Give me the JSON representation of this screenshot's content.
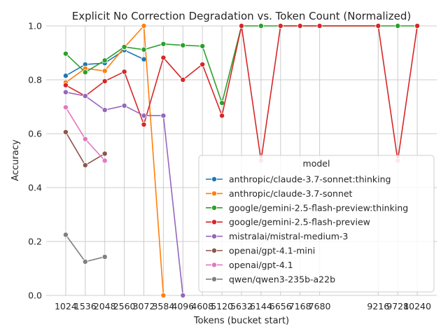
{
  "chart_data": {
    "type": "line",
    "title": "Explicit No Correction Degradation vs. Token Count (Normalized)",
    "xlabel": "Tokens (bucket start)",
    "ylabel": "Accuracy",
    "ylim": [
      0,
      1.0
    ],
    "xlim": [
      512,
      10752
    ],
    "x_ticks": [
      1024,
      1536,
      2048,
      2560,
      3072,
      3584,
      4096,
      4608,
      5120,
      5632,
      6144,
      6656,
      7168,
      7680,
      9216,
      9728,
      10240
    ],
    "y_ticks": [
      0.0,
      0.2,
      0.4,
      0.6,
      0.8,
      1.0
    ],
    "y_tick_labels": [
      "0.0",
      "0.2",
      "0.4",
      "0.6",
      "0.8",
      "1.0"
    ],
    "grid": true,
    "legend": {
      "title": "model",
      "placement": "lower-right"
    },
    "series": [
      {
        "name": "anthropic/claude-3.7-sonnet:thinking",
        "color": "#1f77b4",
        "points": [
          [
            1024,
            0.815
          ],
          [
            1536,
            0.857
          ],
          [
            2048,
            0.862
          ],
          [
            2560,
            0.91
          ],
          [
            3072,
            0.876
          ]
        ]
      },
      {
        "name": "anthropic/claude-3.7-sonnet",
        "color": "#ff7f0e",
        "points": [
          [
            1024,
            0.79
          ],
          [
            1536,
            0.842
          ],
          [
            2048,
            0.833
          ],
          [
            2560,
            0.92
          ],
          [
            3072,
            1.0
          ],
          [
            3584,
            0.0
          ]
        ]
      },
      {
        "name": "google/gemini-2.5-flash-preview:thinking",
        "color": "#2ca02c",
        "points": [
          [
            1024,
            0.897
          ],
          [
            1536,
            0.828
          ],
          [
            2048,
            0.872
          ],
          [
            2560,
            0.922
          ],
          [
            3072,
            0.912
          ],
          [
            3584,
            0.933
          ],
          [
            4096,
            0.928
          ],
          [
            4608,
            0.925
          ],
          [
            5120,
            0.714
          ],
          [
            5632,
            1.0
          ],
          [
            6144,
            1.0
          ],
          [
            6656,
            1.0
          ],
          [
            7168,
            1.0
          ],
          [
            7680,
            1.0
          ],
          [
            9216,
            1.0
          ],
          [
            9728,
            1.0
          ],
          [
            10240,
            1.0
          ]
        ]
      },
      {
        "name": "google/gemini-2.5-flash-preview",
        "color": "#d62728",
        "points": [
          [
            1024,
            0.78
          ],
          [
            1536,
            0.74
          ],
          [
            2048,
            0.795
          ],
          [
            2560,
            0.83
          ],
          [
            3072,
            0.634
          ],
          [
            3584,
            0.882
          ],
          [
            4096,
            0.8
          ],
          [
            4608,
            0.857
          ],
          [
            5120,
            0.667
          ],
          [
            5632,
            1.0
          ],
          [
            6144,
            0.5
          ],
          [
            6656,
            1.0
          ],
          [
            7168,
            1.0
          ],
          [
            7680,
            1.0
          ],
          [
            9216,
            1.0
          ],
          [
            9728,
            0.5
          ],
          [
            10240,
            1.0
          ]
        ]
      },
      {
        "name": "mistralai/mistral-medium-3",
        "color": "#9467bd",
        "points": [
          [
            1024,
            0.754
          ],
          [
            1536,
            0.74
          ],
          [
            2048,
            0.688
          ],
          [
            2560,
            0.704
          ],
          [
            3072,
            0.667
          ],
          [
            3584,
            0.667
          ],
          [
            4096,
            0.0
          ]
        ]
      },
      {
        "name": "openai/gpt-4.1-mini",
        "color": "#8c564b",
        "points": [
          [
            1024,
            0.606
          ],
          [
            1536,
            0.483
          ],
          [
            2048,
            0.526
          ]
        ]
      },
      {
        "name": "openai/gpt-4.1",
        "color": "#e377c2",
        "points": [
          [
            1024,
            0.698
          ],
          [
            1536,
            0.58
          ],
          [
            2048,
            0.5
          ],
          [
            6144,
            0.5
          ],
          [
            9728,
            0.5
          ]
        ],
        "segments": [
          [
            0,
            1,
            2
          ]
        ]
      },
      {
        "name": "qwen/qwen3-235b-a22b",
        "color": "#7f7f7f",
        "points": [
          [
            1024,
            0.225
          ],
          [
            1536,
            0.125
          ],
          [
            2048,
            0.143
          ]
        ]
      }
    ]
  }
}
